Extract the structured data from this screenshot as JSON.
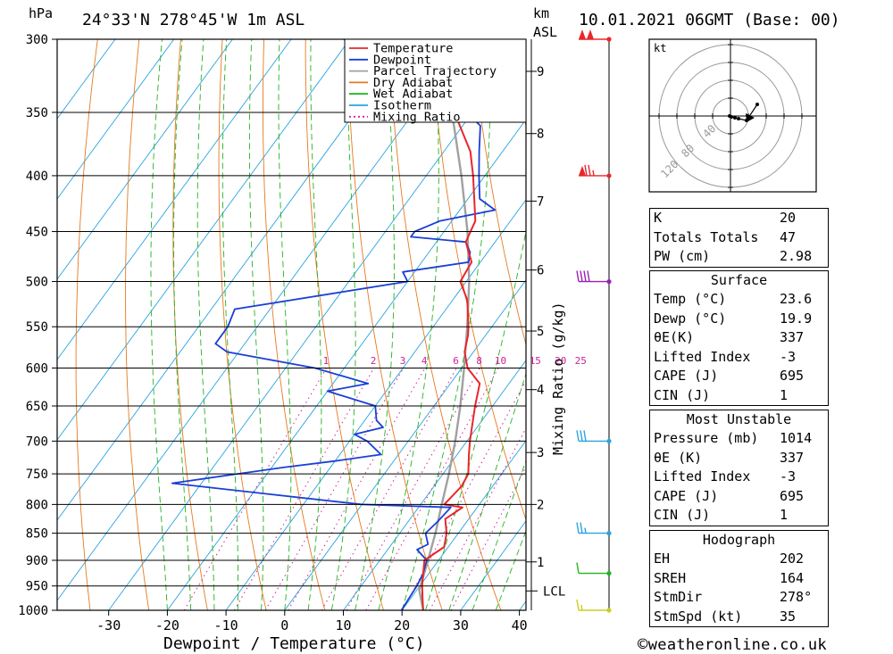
{
  "header": {
    "pressure_unit": "hPa",
    "location": "24°33'N  278°45'W  1m  ASL",
    "height_unit_km": "km",
    "height_unit_asl": "ASL",
    "datetime": "10.01.2021  06GMT  (Base: 00)"
  },
  "legend": {
    "items": [
      {
        "label": "Temperature",
        "color": "#e8262b",
        "style": "solid"
      },
      {
        "label": "Dewpoint",
        "color": "#1a3fd8",
        "style": "solid"
      },
      {
        "label": "Parcel Trajectory",
        "color": "#a0a0a0",
        "style": "solid"
      },
      {
        "label": "Dry Adiabat",
        "color": "#e57a1f",
        "style": "solid"
      },
      {
        "label": "Wet Adiabat",
        "color": "#22b322",
        "style": "solid"
      },
      {
        "label": "Isotherm",
        "color": "#2aa3e0",
        "style": "solid"
      },
      {
        "label": "Mixing Ratio",
        "color": "#cc2299",
        "style": "dotted"
      }
    ]
  },
  "chart_data": {
    "type": "line",
    "xlabel": "Dewpoint / Temperature (°C)",
    "ylabel": "hPa",
    "y_right_label": "Mixing Ratio (g/kg)",
    "xlim": [
      -40,
      40
    ],
    "ylim": [
      1000,
      300
    ],
    "y_scale": "log-pressure",
    "skew": true,
    "x_ticks": [
      "-30",
      "-20",
      "-10",
      "0",
      "10",
      "20",
      "30",
      "40"
    ],
    "pressure_ticks": [
      "300",
      "350",
      "400",
      "450",
      "500",
      "550",
      "600",
      "650",
      "700",
      "750",
      "800",
      "850",
      "900",
      "950",
      "1000"
    ],
    "height_ticks": [
      {
        "label": "9",
        "p": 321
      },
      {
        "label": "8",
        "p": 366
      },
      {
        "label": "7",
        "p": 422
      },
      {
        "label": "6",
        "p": 488
      },
      {
        "label": "5",
        "p": 555
      },
      {
        "label": "4",
        "p": 628
      },
      {
        "label": "3",
        "p": 717
      },
      {
        "label": "2",
        "p": 800
      },
      {
        "label": "1",
        "p": 903
      }
    ],
    "lcl": {
      "label": "LCL",
      "p": 960
    },
    "mixing_ratio_labels": [
      "1",
      "2",
      "3",
      "4",
      "6",
      "8",
      "10",
      "15",
      "20",
      "25"
    ],
    "mixing_ratio_values": [
      1,
      2,
      3,
      4,
      6,
      8,
      10,
      15,
      20,
      25
    ],
    "series": [
      {
        "name": "Temperature",
        "points": [
          [
            1000,
            23.6
          ],
          [
            975,
            22
          ],
          [
            950,
            20.4
          ],
          [
            925,
            19
          ],
          [
            900,
            17.6
          ],
          [
            875,
            19.3
          ],
          [
            850,
            18
          ],
          [
            825,
            16
          ],
          [
            805,
            17.5
          ],
          [
            800,
            14
          ],
          [
            770,
            14.7
          ],
          [
            750,
            14.3
          ],
          [
            720,
            12
          ],
          [
            700,
            10.5
          ],
          [
            650,
            7
          ],
          [
            620,
            5
          ],
          [
            600,
            1
          ],
          [
            580,
            -1.5
          ],
          [
            560,
            -3
          ],
          [
            550,
            -4
          ],
          [
            520,
            -7.5
          ],
          [
            500,
            -11
          ],
          [
            480,
            -11.5
          ],
          [
            460,
            -15
          ],
          [
            440,
            -16
          ],
          [
            400,
            -22
          ],
          [
            380,
            -25.5
          ],
          [
            360,
            -30.5
          ],
          [
            350,
            -33
          ],
          [
            320,
            -39
          ],
          [
            300,
            -44
          ]
        ]
      },
      {
        "name": "Dewpoint",
        "points": [
          [
            1000,
            19.9
          ],
          [
            950,
            19.5
          ],
          [
            925,
            19
          ],
          [
            900,
            18
          ],
          [
            880,
            15
          ],
          [
            870,
            16.2
          ],
          [
            850,
            14.4
          ],
          [
            830,
            15
          ],
          [
            805,
            15.5
          ],
          [
            800,
            0
          ],
          [
            780,
            -20
          ],
          [
            765,
            -35
          ],
          [
            750,
            -25
          ],
          [
            740,
            -18
          ],
          [
            730,
            -10
          ],
          [
            720,
            -3
          ],
          [
            700,
            -7
          ],
          [
            690,
            -10
          ],
          [
            680,
            -6
          ],
          [
            670,
            -8
          ],
          [
            650,
            -10
          ],
          [
            630,
            -20
          ],
          [
            620,
            -14
          ],
          [
            600,
            -25
          ],
          [
            580,
            -42
          ],
          [
            570,
            -45
          ],
          [
            550,
            -45
          ],
          [
            530,
            -46
          ],
          [
            500,
            -20
          ],
          [
            490,
            -22
          ],
          [
            480,
            -12
          ],
          [
            470,
            -13
          ],
          [
            460,
            -15
          ],
          [
            455,
            -25
          ],
          [
            450,
            -25
          ],
          [
            440,
            -22
          ],
          [
            430,
            -14
          ],
          [
            420,
            -18
          ],
          [
            400,
            -21
          ],
          [
            380,
            -24
          ],
          [
            360,
            -27
          ],
          [
            355,
            -29
          ],
          [
            345,
            -25
          ],
          [
            340,
            -37
          ],
          [
            320,
            -50
          ],
          [
            300,
            -61
          ]
        ]
      },
      {
        "name": "Parcel Trajectory",
        "points": [
          [
            1000,
            23.6
          ],
          [
            958,
            20.4
          ],
          [
            900,
            18.2
          ],
          [
            850,
            16.1
          ],
          [
            800,
            13.6
          ],
          [
            750,
            11
          ],
          [
            700,
            8
          ],
          [
            650,
            4.5
          ],
          [
            600,
            0.4
          ],
          [
            550,
            -4.2
          ],
          [
            500,
            -9.5
          ],
          [
            450,
            -16
          ],
          [
            400,
            -24
          ],
          [
            350,
            -33.5
          ],
          [
            300,
            -45
          ]
        ]
      }
    ],
    "wind_barbs": [
      {
        "p": 300,
        "speed_kt": 100,
        "color": "#e8262b"
      },
      {
        "p": 400,
        "speed_kt": 75,
        "color": "#e8262b"
      },
      {
        "p": 500,
        "speed_kt": 40,
        "color": "#9b1fb5"
      },
      {
        "p": 700,
        "speed_kt": 30,
        "color": "#2aa3e0"
      },
      {
        "p": 850,
        "speed_kt": 25,
        "color": "#2aa3e0"
      },
      {
        "p": 925,
        "speed_kt": 10,
        "color": "#22b322"
      },
      {
        "p": 1000,
        "speed_kt": 15,
        "color": "#c8d021"
      }
    ],
    "hodograph": {
      "unit": "kt",
      "ring_labels": [
        "40",
        "80",
        "120"
      ],
      "points": [
        [
          -1,
          0
        ],
        [
          1,
          -1
        ],
        [
          5,
          -2
        ],
        [
          9,
          -3
        ],
        [
          18,
          -5
        ],
        [
          30,
          13
        ]
      ],
      "storm_motion": [
        10,
        0
      ]
    }
  },
  "indices": {
    "k": {
      "label": "K",
      "value": "20"
    },
    "tt": {
      "label": "Totals Totals",
      "value": "47"
    },
    "pw": {
      "label": "PW (cm)",
      "value": "2.98"
    }
  },
  "surface": {
    "title": "Surface",
    "temp": {
      "label": "Temp (°C)",
      "value": "23.6"
    },
    "dewp": {
      "label": "Dewp (°C)",
      "value": "19.9"
    },
    "theta": {
      "label": "θE(K)",
      "value": "337"
    },
    "li": {
      "label": "Lifted Index",
      "value": "-3"
    },
    "cape": {
      "label": "CAPE (J)",
      "value": "695"
    },
    "cin": {
      "label": "CIN (J)",
      "value": "1"
    }
  },
  "most_unstable": {
    "title": "Most Unstable",
    "pressure": {
      "label": "Pressure (mb)",
      "value": "1014"
    },
    "theta": {
      "label": "θE (K)",
      "value": "337"
    },
    "li": {
      "label": "Lifted Index",
      "value": "-3"
    },
    "cape": {
      "label": "CAPE (J)",
      "value": "695"
    },
    "cin": {
      "label": "CIN (J)",
      "value": "1"
    }
  },
  "hodograph_params": {
    "title": "Hodograph",
    "eh": {
      "label": "EH",
      "value": "202"
    },
    "sreh": {
      "label": "SREH",
      "value": "164"
    },
    "stmdir": {
      "label": "StmDir",
      "value": "278°"
    },
    "stmspd": {
      "label": "StmSpd (kt)",
      "value": "35"
    }
  },
  "footer": {
    "copyright_symbol": "©",
    "site": "weatheronline.co.uk"
  }
}
